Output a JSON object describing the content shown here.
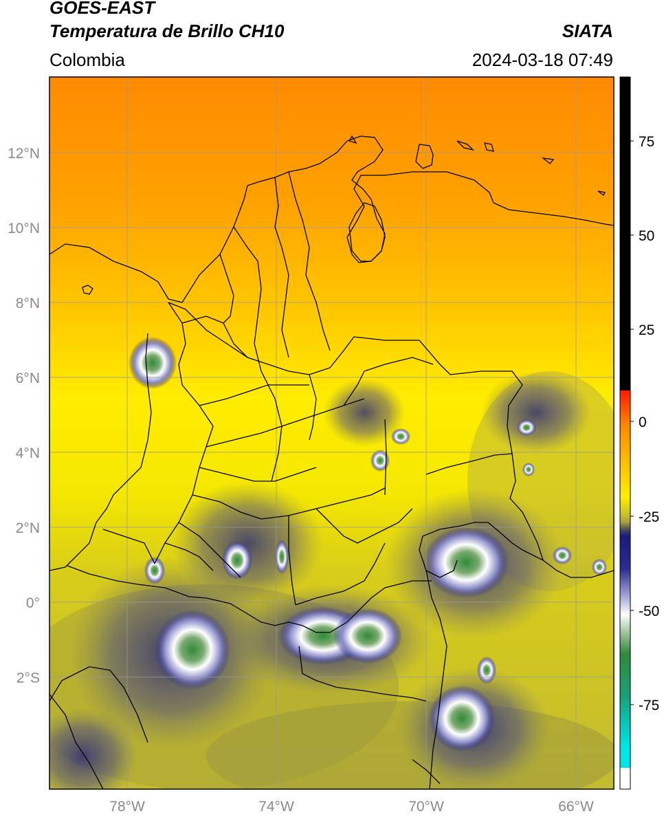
{
  "header": {
    "satellite": "GOES-EAST",
    "product": "Temperatura de Brillo CH10",
    "region": "Colombia",
    "org": "SIATA",
    "datetime": "2024-03-18 07:49"
  },
  "map": {
    "lat_labels": [
      "12°N",
      "10°N",
      "8°N",
      "6°N",
      "4°N",
      "2°N",
      "0°",
      "2°S"
    ],
    "lon_labels": [
      "78°W",
      "74°W",
      "70°W",
      "66°W"
    ]
  },
  "colorbar": {
    "labels": [
      "75",
      "50",
      "25",
      "0",
      "-25",
      "-50",
      "-75"
    ],
    "colors": {
      "black": "#000000",
      "red": "#ff2a00",
      "orange": "#ff8c00",
      "yellow": "#ffee00",
      "olive": "#b8b430",
      "gray": "#555555",
      "navy": "#1a1a80",
      "white": "#ffffff",
      "green": "#2e8b3a",
      "teal": "#19b5a0",
      "cyan": "#00e5e5"
    }
  }
}
